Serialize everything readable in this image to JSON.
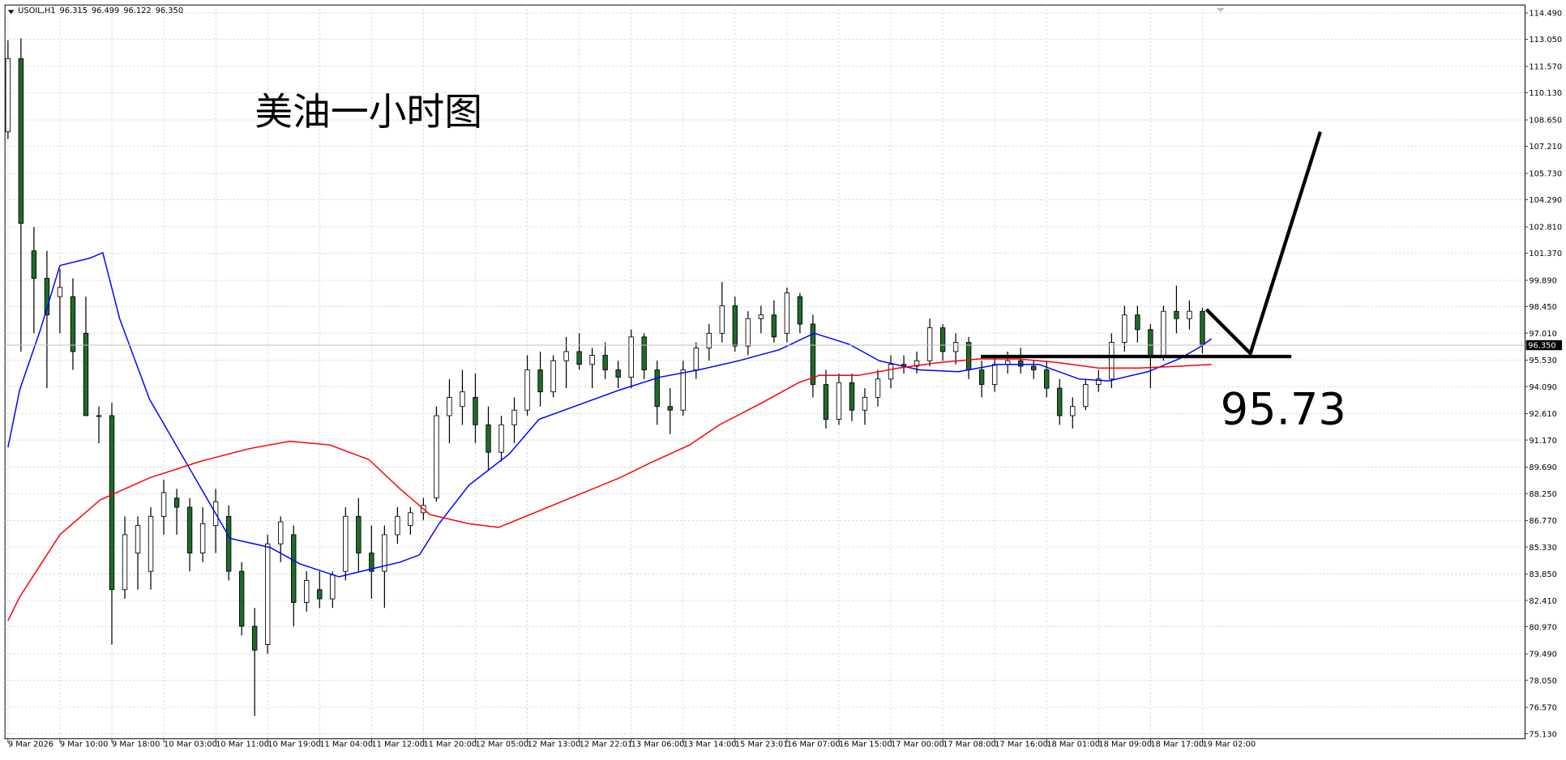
{
  "chart_data": {
    "type": "candlestick",
    "info_bar": {
      "symbol": "USOIL,H1",
      "values": [
        {
          "value": 96.315,
          "label": "96.315"
        },
        {
          "value": 96.499,
          "label": "96.499"
        },
        {
          "value": 96.122,
          "label": "96.122"
        },
        {
          "value": 96.35,
          "label": "96.350"
        }
      ]
    },
    "title": "美油一小时图",
    "level": {
      "value": 95.73,
      "label": "95.73"
    },
    "last_price": {
      "value": 96.35,
      "label": "96.350"
    },
    "up_color": "#ffffff",
    "down_color": "#1f6b2a",
    "wick_color": "#000000",
    "grid": true,
    "xlim": [
      -0.23,
      116.85
    ],
    "ylim": [
      75.13,
      114.49
    ],
    "xticks": [
      {
        "value": 0,
        "label": "9 Mar 2026"
      },
      {
        "value": 4,
        "label": "9 Mar 10:00"
      },
      {
        "value": 8,
        "label": "9 Mar 18:00"
      },
      {
        "value": 12,
        "label": "10 Mar 03:00"
      },
      {
        "value": 16,
        "label": "10 Mar 11:00"
      },
      {
        "value": 20,
        "label": "10 Mar 19:00"
      },
      {
        "value": 24,
        "label": "11 Mar 04:00"
      },
      {
        "value": 28,
        "label": "11 Mar 12:00"
      },
      {
        "value": 32,
        "label": "11 Mar 20:00"
      },
      {
        "value": 36,
        "label": "12 Mar 05:00"
      },
      {
        "value": 40,
        "label": "12 Mar 13:00"
      },
      {
        "value": 44,
        "label": "12 Mar 22:01"
      },
      {
        "value": 48,
        "label": "13 Mar 06:00"
      },
      {
        "value": 52,
        "label": "13 Mar 14:00"
      },
      {
        "value": 56,
        "label": "15 Mar 23:01"
      },
      {
        "value": 60,
        "label": "16 Mar 07:00"
      },
      {
        "value": 64,
        "label": "16 Mar 15:00"
      },
      {
        "value": 68,
        "label": "17 Mar 00:00"
      },
      {
        "value": 72,
        "label": "17 Mar 08:00"
      },
      {
        "value": 76,
        "label": "17 Mar 16:00"
      },
      {
        "value": 80,
        "label": "18 Mar 01:00"
      },
      {
        "value": 84,
        "label": "18 Mar 09:00"
      },
      {
        "value": 88,
        "label": "18 Mar 17:00"
      },
      {
        "value": 92,
        "label": "19 Mar 02:00"
      }
    ],
    "yticks": [
      {
        "value": 114.49,
        "label": "114.490"
      },
      {
        "value": 113.05,
        "label": "113.050"
      },
      {
        "value": 111.57,
        "label": "111.570"
      },
      {
        "value": 110.13,
        "label": "110.130"
      },
      {
        "value": 108.65,
        "label": "108.650"
      },
      {
        "value": 107.21,
        "label": "107.210"
      },
      {
        "value": 105.73,
        "label": "105.730"
      },
      {
        "value": 104.29,
        "label": "104.290"
      },
      {
        "value": 102.81,
        "label": "102.810"
      },
      {
        "value": 101.37,
        "label": "101.370"
      },
      {
        "value": 99.89,
        "label": "99.890"
      },
      {
        "value": 98.45,
        "label": "98.450"
      },
      {
        "value": 97.01,
        "label": "97.010"
      },
      {
        "value": 95.53,
        "label": "95.530"
      },
      {
        "value": 94.09,
        "label": "94.090"
      },
      {
        "value": 92.61,
        "label": "92.610"
      },
      {
        "value": 91.17,
        "label": "91.170"
      },
      {
        "value": 89.69,
        "label": "89.690"
      },
      {
        "value": 88.25,
        "label": "88.250"
      },
      {
        "value": 86.77,
        "label": "86.770"
      },
      {
        "value": 85.33,
        "label": "85.330"
      },
      {
        "value": 83.85,
        "label": "83.850"
      },
      {
        "value": 82.41,
        "label": "82.410"
      },
      {
        "value": 80.97,
        "label": "80.970"
      },
      {
        "value": 79.49,
        "label": "79.490"
      },
      {
        "value": 78.05,
        "label": "78.050"
      },
      {
        "value": 76.57,
        "label": "76.570"
      },
      {
        "value": 75.13,
        "label": "75.130"
      }
    ],
    "candles": {
      "open": [
        108,
        112,
        101.5,
        100,
        99,
        99,
        97,
        92.5,
        92.5,
        83,
        85,
        84,
        87,
        88,
        87.5,
        85,
        86.5,
        87,
        84,
        81,
        80,
        85.5,
        86,
        82.3,
        83,
        82.5,
        84,
        87,
        85,
        84,
        86,
        86.5,
        87.2,
        88,
        92.5,
        93,
        93.5,
        92,
        90.5,
        92,
        92.8,
        95,
        93.8,
        95.5,
        96,
        95.3,
        95.8,
        95,
        94.6,
        96.8,
        95,
        93,
        92.8,
        95,
        96.2,
        97,
        98.5,
        96.3,
        97.8,
        98,
        97,
        99,
        97.5,
        94.2,
        92.3,
        94.3,
        92.8,
        93.5,
        94.5,
        95.3,
        95.2,
        95.5,
        97.3,
        96,
        96.5,
        95,
        94.2,
        95.3,
        95.5,
        95.2,
        95,
        94,
        92.5,
        93,
        94.2,
        94.5,
        96.5,
        98,
        97.2,
        95.8,
        98.2,
        97.8,
        98.2
      ],
      "high": [
        113,
        113.1,
        102.8,
        101.5,
        100.5,
        100,
        99,
        93,
        93.2,
        87,
        87,
        87.5,
        89,
        88.5,
        88,
        87.5,
        88.5,
        87.6,
        84.5,
        82,
        86,
        87,
        86.5,
        84,
        84,
        84,
        87.5,
        88,
        86.5,
        86.5,
        87.5,
        87.5,
        88,
        93,
        94.5,
        95,
        94.8,
        93,
        92.5,
        93.5,
        95.8,
        96,
        95.8,
        96.8,
        97,
        96.2,
        96.5,
        95.5,
        97.2,
        97,
        95.5,
        94,
        95.5,
        96.5,
        97.5,
        99.8,
        99,
        98.2,
        98.5,
        98.8,
        99.5,
        99.2,
        98,
        95,
        94.8,
        94.8,
        94,
        95,
        95.8,
        95.8,
        96,
        97.8,
        97.5,
        97,
        96.8,
        95.5,
        95.8,
        96,
        96.2,
        95.5,
        95.5,
        94.5,
        93.5,
        94.5,
        95,
        97,
        98.5,
        98.5,
        97.5,
        98.5,
        99.6,
        98.8,
        98.4
      ],
      "low": [
        107.6,
        96,
        97,
        94,
        97,
        95,
        94,
        91,
        80,
        82.5,
        83,
        83,
        86,
        86,
        84,
        84.5,
        85,
        83.5,
        80.5,
        76.1,
        79.5,
        84.5,
        81,
        81.8,
        82,
        82,
        83.5,
        84,
        82.5,
        82,
        85.5,
        86,
        86.8,
        87.8,
        91,
        92,
        91,
        89.5,
        90,
        91,
        92.5,
        93,
        93.5,
        94,
        95,
        94,
        94.5,
        94,
        94,
        94.5,
        92,
        91.5,
        92.5,
        94.5,
        95.5,
        96.5,
        96,
        95.8,
        97,
        96.5,
        96.5,
        97,
        93.5,
        91.8,
        92,
        92.2,
        92,
        93,
        94,
        94.8,
        94.8,
        95.2,
        95.5,
        95.3,
        94.5,
        93.5,
        93.8,
        94.8,
        94.8,
        94.5,
        93.5,
        92,
        91.8,
        92.8,
        93.8,
        94,
        96,
        96.5,
        94,
        95.5,
        97,
        97.2,
        95.9
      ],
      "close": [
        112,
        103,
        100,
        98,
        99.5,
        96,
        92.5,
        92.5,
        83,
        86,
        86.5,
        87,
        88.3,
        87.5,
        85,
        86.6,
        87.8,
        84,
        81,
        79.7,
        85.5,
        86.7,
        82.3,
        83.5,
        82.5,
        83.8,
        87,
        85,
        84,
        86,
        87,
        87.2,
        87.6,
        92.5,
        93.5,
        93.8,
        92,
        90.5,
        92,
        92.8,
        95,
        93.8,
        95.5,
        96,
        95.3,
        95.8,
        95,
        94.6,
        96.8,
        95,
        93,
        92.8,
        95,
        96.2,
        97,
        98.5,
        96.3,
        97.8,
        98,
        96.8,
        99.2,
        97.5,
        94.2,
        92.3,
        94.3,
        92.8,
        93.5,
        94.5,
        95.3,
        95.2,
        95.5,
        97.3,
        96,
        96.5,
        95,
        94.2,
        95.3,
        95.5,
        95.2,
        95,
        94,
        92.5,
        93,
        94.2,
        94.5,
        96.5,
        98,
        97.2,
        95.8,
        98.2,
        97.8,
        98.2,
        96.35
      ]
    },
    "lines": [
      {
        "color": "#0000ff",
        "x": [
          0,
          0.9,
          2.5,
          4,
          6.3,
          7.3,
          8.6,
          10.9,
          14,
          17.1,
          20.2,
          22.5,
          25.5,
          27.8,
          30.2,
          31.7,
          33.2,
          35.5,
          38.6,
          40.9,
          44,
          47.1,
          50.2,
          53.2,
          56.3,
          59.4,
          62.1,
          64.8,
          67.1,
          70.2,
          73.2,
          76.3,
          79.4,
          82.5,
          84.8,
          87.8,
          90.2,
          91.7,
          92.7
        ],
        "values": [
          90.77,
          93.9,
          97.2,
          100.7,
          101.1,
          101.4,
          97.8,
          93.4,
          89.6,
          85.8,
          85.3,
          84.4,
          83.7,
          84.1,
          84.5,
          84.9,
          86.6,
          88.7,
          90.4,
          92.3,
          93.1,
          93.9,
          94.6,
          95.0,
          95.5,
          96.1,
          97.0,
          96.4,
          95.5,
          95.0,
          94.9,
          95.3,
          95.3,
          94.5,
          94.4,
          94.9,
          95.6,
          96.2,
          96.7
        ]
      },
      {
        "color": "#ff0000",
        "x": [
          0,
          0.9,
          4,
          7.1,
          10.9,
          14.8,
          18.6,
          21.7,
          24.8,
          27.8,
          30.2,
          32.5,
          35.5,
          37.8,
          40.9,
          44,
          47.1,
          49.4,
          52.5,
          54.8,
          57.8,
          60.9,
          62.5,
          65.5,
          68.6,
          71.7,
          74.8,
          77.8,
          80.9,
          84,
          87.1,
          90.2,
          92.7
        ],
        "values": [
          81.3,
          82.6,
          86.0,
          87.9,
          89.1,
          90.0,
          90.7,
          91.1,
          90.9,
          90.1,
          88.5,
          87.1,
          86.6,
          86.4,
          87.3,
          88.2,
          89.1,
          89.9,
          90.9,
          92.0,
          93.1,
          94.3,
          94.7,
          94.7,
          95.1,
          95.4,
          95.6,
          95.6,
          95.4,
          95.1,
          95.1,
          95.2,
          95.3
        ]
      }
    ]
  }
}
